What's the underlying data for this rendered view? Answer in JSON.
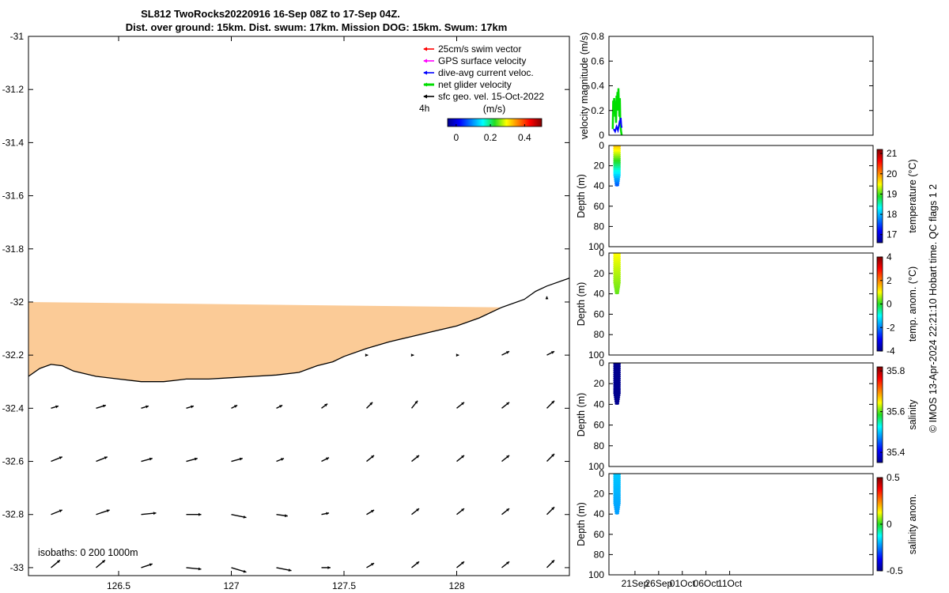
{
  "title": {
    "line1": "SL812 TwoRocks20220916 16-Sep 08Z to 17-Sep 04Z.",
    "line2": "Dist. over ground: 15km. Dist. swum: 17km. Mission DOG: 15km. Swum: 17km"
  },
  "footer": "© IMOS 13-Apr-2024 22:21:10 Hobart time. QC flags 1  2",
  "colors": {
    "land": "#fbcb97",
    "red_vec": "#ff0000",
    "magenta_vec": "#ff00ff",
    "blue_vec": "#0000ff",
    "green_vec": "#00dd00",
    "black_vec": "#000000"
  },
  "chart_data": [
    {
      "type": "scatter",
      "id": "map",
      "xlim": [
        126.1,
        128.5
      ],
      "ylim": [
        -33.03,
        -31.0
      ],
      "xticks": [
        126.5,
        127,
        127.5,
        128
      ],
      "xtick_labels": [
        "126.5",
        "127",
        "127.5",
        "128"
      ],
      "yticks": [
        -31,
        -31.2,
        -31.4,
        -31.6,
        -31.8,
        -32,
        -32.2,
        -32.4,
        -32.6,
        -32.8,
        -33
      ],
      "ytick_labels": [
        "-31",
        "-31.2",
        "-31.4",
        "-31.6",
        "-31.8",
        "-32",
        "-32.2",
        "-32.4",
        "-32.6",
        "-32.8",
        "-33"
      ],
      "coastline": [
        [
          126.1,
          -32.28
        ],
        [
          126.15,
          -32.25
        ],
        [
          126.2,
          -32.235
        ],
        [
          126.25,
          -32.24
        ],
        [
          126.3,
          -32.26
        ],
        [
          126.4,
          -32.28
        ],
        [
          126.5,
          -32.29
        ],
        [
          126.6,
          -32.3
        ],
        [
          126.7,
          -32.3
        ],
        [
          126.75,
          -32.295
        ],
        [
          126.8,
          -32.29
        ],
        [
          126.9,
          -32.29
        ],
        [
          127.0,
          -32.285
        ],
        [
          127.1,
          -32.28
        ],
        [
          127.2,
          -32.275
        ],
        [
          127.3,
          -32.265
        ],
        [
          127.38,
          -32.24
        ],
        [
          127.45,
          -32.225
        ],
        [
          127.5,
          -32.205
        ],
        [
          127.6,
          -32.175
        ],
        [
          127.7,
          -32.15
        ],
        [
          127.8,
          -32.13
        ],
        [
          127.9,
          -32.11
        ],
        [
          128.0,
          -32.09
        ],
        [
          128.1,
          -32.06
        ],
        [
          128.2,
          -32.02
        ],
        [
          128.3,
          -31.99
        ],
        [
          128.35,
          -31.96
        ],
        [
          128.4,
          -31.94
        ],
        [
          128.5,
          -31.91
        ]
      ],
      "land_top": -32.0,
      "isobaths_label": "isobaths: 0   200   1000m",
      "legend": {
        "items": [
          {
            "label": "25cm/s swim vector",
            "color": "red_vec"
          },
          {
            "label": "GPS surface velocity",
            "color": "magenta_vec"
          },
          {
            "label": "dive-avg current veloc.",
            "color": "blue_vec"
          },
          {
            "label": "net glider velocity",
            "color": "green_vec"
          },
          {
            "label": "sfc geo. vel. 15-Oct-2022",
            "color": "black_vec"
          }
        ],
        "time_label": "4h",
        "colorbar_label": "(m/s)",
        "colorbar_ticks": [
          0,
          0.2,
          0.4
        ],
        "colorbar_tick_labels": [
          "0",
          "0.2",
          "0.4"
        ],
        "colorbar_range": [
          -0.05,
          0.5
        ]
      },
      "vectors": [
        {
          "lon": 127.6,
          "lat": -32.2,
          "u": 0.02,
          "v": 0.0
        },
        {
          "lon": 127.8,
          "lat": -32.2,
          "u": 0.03,
          "v": 0.0
        },
        {
          "lon": 128.0,
          "lat": -32.2,
          "u": 0.03,
          "v": 0.0
        },
        {
          "lon": 128.2,
          "lat": -32.2,
          "u": 0.1,
          "v": 0.05
        },
        {
          "lon": 128.4,
          "lat": -32.2,
          "u": 0.1,
          "v": 0.05
        },
        {
          "lon": 128.4,
          "lat": -31.99,
          "u": 0.0,
          "v": 0.04
        },
        {
          "lon": 126.2,
          "lat": -32.4,
          "u": 0.1,
          "v": 0.03
        },
        {
          "lon": 126.4,
          "lat": -32.4,
          "u": 0.13,
          "v": 0.04
        },
        {
          "lon": 126.6,
          "lat": -32.4,
          "u": 0.1,
          "v": 0.03
        },
        {
          "lon": 126.8,
          "lat": -32.4,
          "u": 0.1,
          "v": 0.03
        },
        {
          "lon": 127.0,
          "lat": -32.4,
          "u": 0.08,
          "v": 0.04
        },
        {
          "lon": 127.2,
          "lat": -32.4,
          "u": 0.08,
          "v": 0.04
        },
        {
          "lon": 127.4,
          "lat": -32.4,
          "u": 0.08,
          "v": 0.06
        },
        {
          "lon": 127.6,
          "lat": -32.4,
          "u": 0.08,
          "v": 0.08
        },
        {
          "lon": 127.8,
          "lat": -32.4,
          "u": 0.08,
          "v": 0.1
        },
        {
          "lon": 128.0,
          "lat": -32.4,
          "u": 0.1,
          "v": 0.08
        },
        {
          "lon": 128.2,
          "lat": -32.4,
          "u": 0.1,
          "v": 0.08
        },
        {
          "lon": 128.4,
          "lat": -32.4,
          "u": 0.1,
          "v": 0.1
        },
        {
          "lon": 126.2,
          "lat": -32.6,
          "u": 0.15,
          "v": 0.06
        },
        {
          "lon": 126.4,
          "lat": -32.6,
          "u": 0.15,
          "v": 0.06
        },
        {
          "lon": 126.6,
          "lat": -32.6,
          "u": 0.15,
          "v": 0.04
        },
        {
          "lon": 126.8,
          "lat": -32.6,
          "u": 0.15,
          "v": 0.04
        },
        {
          "lon": 127.0,
          "lat": -32.6,
          "u": 0.15,
          "v": 0.04
        },
        {
          "lon": 127.2,
          "lat": -32.6,
          "u": 0.1,
          "v": 0.04
        },
        {
          "lon": 127.4,
          "lat": -32.6,
          "u": 0.1,
          "v": 0.05
        },
        {
          "lon": 127.6,
          "lat": -32.6,
          "u": 0.1,
          "v": 0.08
        },
        {
          "lon": 127.8,
          "lat": -32.6,
          "u": 0.1,
          "v": 0.08
        },
        {
          "lon": 128.0,
          "lat": -32.6,
          "u": 0.1,
          "v": 0.08
        },
        {
          "lon": 128.2,
          "lat": -32.6,
          "u": 0.1,
          "v": 0.08
        },
        {
          "lon": 128.4,
          "lat": -32.6,
          "u": 0.1,
          "v": 0.1
        },
        {
          "lon": 126.2,
          "lat": -32.8,
          "u": 0.15,
          "v": 0.06
        },
        {
          "lon": 126.4,
          "lat": -32.8,
          "u": 0.18,
          "v": 0.06
        },
        {
          "lon": 126.6,
          "lat": -32.8,
          "u": 0.2,
          "v": 0.02
        },
        {
          "lon": 126.8,
          "lat": -32.8,
          "u": 0.2,
          "v": 0.0
        },
        {
          "lon": 127.0,
          "lat": -32.8,
          "u": 0.2,
          "v": -0.04
        },
        {
          "lon": 127.2,
          "lat": -32.8,
          "u": 0.15,
          "v": -0.02
        },
        {
          "lon": 127.4,
          "lat": -32.8,
          "u": 0.1,
          "v": 0.02
        },
        {
          "lon": 127.6,
          "lat": -32.8,
          "u": 0.1,
          "v": 0.06
        },
        {
          "lon": 127.8,
          "lat": -32.8,
          "u": 0.1,
          "v": 0.08
        },
        {
          "lon": 128.0,
          "lat": -32.8,
          "u": 0.1,
          "v": 0.08
        },
        {
          "lon": 128.2,
          "lat": -32.8,
          "u": 0.1,
          "v": 0.08
        },
        {
          "lon": 128.4,
          "lat": -32.8,
          "u": 0.1,
          "v": 0.1
        },
        {
          "lon": 126.2,
          "lat": -33.0,
          "u": 0.12,
          "v": 0.1
        },
        {
          "lon": 126.4,
          "lat": -33.0,
          "u": 0.12,
          "v": 0.1
        },
        {
          "lon": 126.6,
          "lat": -33.0,
          "u": 0.15,
          "v": 0.05
        },
        {
          "lon": 126.8,
          "lat": -33.0,
          "u": 0.2,
          "v": -0.02
        },
        {
          "lon": 127.0,
          "lat": -33.0,
          "u": 0.2,
          "v": -0.06
        },
        {
          "lon": 127.2,
          "lat": -33.0,
          "u": 0.2,
          "v": -0.04
        },
        {
          "lon": 127.4,
          "lat": -33.0,
          "u": 0.12,
          "v": 0.0
        },
        {
          "lon": 127.6,
          "lat": -33.0,
          "u": 0.1,
          "v": 0.06
        },
        {
          "lon": 127.8,
          "lat": -33.0,
          "u": 0.1,
          "v": 0.08
        },
        {
          "lon": 128.0,
          "lat": -33.0,
          "u": 0.1,
          "v": 0.08
        },
        {
          "lon": 128.2,
          "lat": -33.0,
          "u": 0.1,
          "v": 0.08
        },
        {
          "lon": 128.4,
          "lat": -33.0,
          "u": 0.1,
          "v": 0.1
        }
      ]
    },
    {
      "type": "line",
      "id": "velocity",
      "ylabel": "velocity magnitude (m/s)",
      "ylim": [
        0,
        0.8
      ],
      "yticks": [
        0,
        0.2,
        0.4,
        0.6,
        0.8
      ],
      "ytick_labels": [
        "0",
        "0.2",
        "0.4",
        "0.6",
        "0.8"
      ],
      "xlim_day": [
        15.5,
        71.3
      ],
      "series": [
        {
          "color": "green_vec",
          "x": [
            16.3,
            16.4,
            16.5,
            16.6,
            16.7,
            16.8,
            16.9,
            17.0,
            17.1,
            17.2,
            17.3,
            17.4,
            17.5,
            17.6,
            17.7,
            17.8,
            17.9,
            18.0,
            18.1,
            18.2
          ],
          "y": [
            0.05,
            0.28,
            0.2,
            0.3,
            0.25,
            0.15,
            0.22,
            0.1,
            0.32,
            0.28,
            0.35,
            0.2,
            0.38,
            0.25,
            0.15,
            0.3,
            0.1,
            0.05,
            0.02,
            0.0
          ]
        },
        {
          "color": "blue_vec",
          "x": [
            16.5,
            16.8,
            17.1,
            17.4,
            17.6,
            17.8,
            17.9,
            18.0,
            18.1,
            18.2
          ],
          "y": [
            0.05,
            0.03,
            0.07,
            0.04,
            0.08,
            0.12,
            0.1,
            0.14,
            0.08,
            0.06
          ]
        }
      ]
    },
    {
      "type": "scatter",
      "id": "temperature",
      "ylabel": "Depth (m)",
      "cbar_label": "temperature (°C)",
      "ylim": [
        100,
        0
      ],
      "yticks": [
        0,
        20,
        40,
        60,
        80,
        100
      ],
      "ytick_labels": [
        "0",
        "20",
        "40",
        "60",
        "80",
        "100"
      ],
      "clim": [
        16.6,
        21.2
      ],
      "cticks": [
        17,
        18,
        19,
        20,
        21
      ],
      "ctick_labels": [
        "17",
        "18",
        "19",
        "20",
        "21"
      ],
      "x_range": [
        16.4,
        18.0
      ],
      "max_depth": 40,
      "surface_value": 19.7,
      "deep_value": 17.6
    },
    {
      "type": "scatter",
      "id": "temp_anom",
      "ylabel": "Depth (m)",
      "cbar_label": "temp. anom. (°C)",
      "ylim": [
        100,
        0
      ],
      "yticks": [
        0,
        20,
        40,
        60,
        80,
        100
      ],
      "ytick_labels": [
        "0",
        "20",
        "40",
        "60",
        "80",
        "100"
      ],
      "clim": [
        -4,
        4
      ],
      "cticks": [
        -4,
        -2,
        0,
        2,
        4
      ],
      "ctick_labels": [
        "-4",
        "-2",
        "0",
        "2",
        "4"
      ],
      "x_range": [
        16.4,
        18.0
      ],
      "max_depth": 40,
      "surface_value": 1.0,
      "deep_value": 0.3
    },
    {
      "type": "scatter",
      "id": "salinity",
      "ylabel": "Depth (m)",
      "cbar_label": "salinity",
      "ylim": [
        100,
        0
      ],
      "yticks": [
        0,
        20,
        40,
        60,
        80,
        100
      ],
      "ytick_labels": [
        "0",
        "20",
        "40",
        "60",
        "80",
        "100"
      ],
      "clim": [
        35.35,
        35.82
      ],
      "cticks": [
        35.4,
        35.6,
        35.8
      ],
      "ctick_labels": [
        "35.4",
        "35.6",
        "35.8"
      ],
      "x_range": [
        16.4,
        18.0
      ],
      "max_depth": 40,
      "surface_value": 35.35,
      "deep_value": 35.35
    },
    {
      "type": "scatter",
      "id": "sal_anom",
      "ylabel": "Depth (m)",
      "cbar_label": "salinity anom.",
      "ylim": [
        100,
        0
      ],
      "yticks": [
        0,
        20,
        40,
        60,
        80,
        100
      ],
      "ytick_labels": [
        "0",
        "20",
        "40",
        "60",
        "80",
        "100"
      ],
      "clim": [
        -0.5,
        0.5
      ],
      "cticks": [
        -0.5,
        0,
        0.5
      ],
      "ctick_labels": [
        "-0.5",
        "0",
        "0.5"
      ],
      "x_range": [
        16.4,
        18.0
      ],
      "max_depth": 40,
      "surface_value": -0.18,
      "deep_value": -0.22,
      "xticks_day": [
        21,
        26,
        31,
        36,
        41
      ],
      "xtick_labels": [
        "21Sep",
        "26Sep",
        "01Oct",
        "06Oct",
        "11Oct"
      ]
    }
  ]
}
